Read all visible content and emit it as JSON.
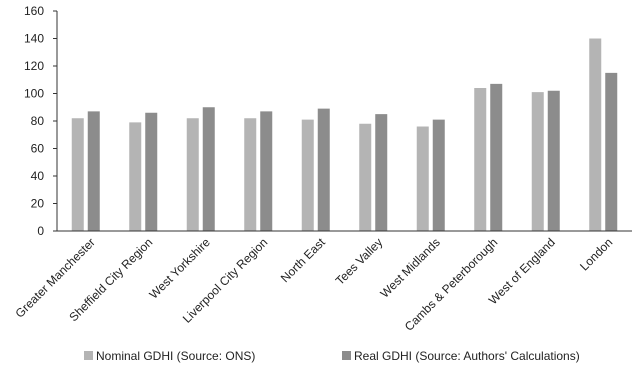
{
  "chart_data": {
    "type": "bar",
    "categories": [
      "Greater Manchester",
      "Sheffield City Region",
      "West Yorkshire",
      "Liverpool City Region",
      "North East",
      "Tees Valley",
      "West Midlands",
      "Cambs & Peterborough",
      "West of England",
      "London"
    ],
    "series": [
      {
        "name": "Nominal GDHI (Source: ONS)",
        "values": [
          82,
          79,
          82,
          82,
          81,
          78,
          76,
          104,
          101,
          140
        ],
        "color": "#b4b4b4"
      },
      {
        "name": "Real GDHI (Source: Authors' Calculations)",
        "values": [
          87,
          86,
          90,
          87,
          89,
          85,
          81,
          107,
          102,
          115
        ],
        "color": "#8c8c8c"
      }
    ],
    "ylim": [
      0,
      160
    ],
    "yticks": [
      0,
      20,
      40,
      60,
      80,
      100,
      120,
      140,
      160
    ],
    "grid": false,
    "legend_position": "bottom"
  }
}
